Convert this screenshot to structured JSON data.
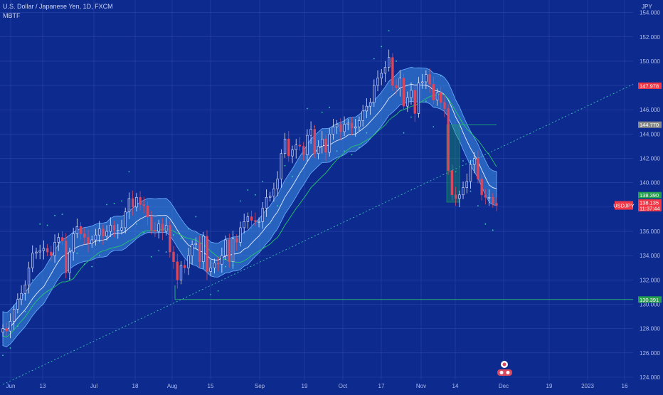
{
  "header": {
    "symbol_line": "U.S. Dollar / Japanese Yen, 1D, FXCM",
    "indicator": "MBTF"
  },
  "colors": {
    "background": "#0d2a8f",
    "grid": "#2a46a8",
    "up": "#1e3ea8",
    "down": "#d9485f",
    "band": "#3f8fe8",
    "mid": "#e6ecff",
    "signal": "#22c76a",
    "dots": "#3fd3b0",
    "support": "#2fc26b",
    "price_badge": "#f23645",
    "gray_badge": "#888888"
  },
  "chart_data": {
    "type": "candlestick",
    "title": "U.S. Dollar / Japanese Yen, 1D, FXCM",
    "ylabel": "JPY",
    "ylim": [
      123.5,
      155
    ],
    "y_ticks": [
      "124.000",
      "126.000",
      "128.000",
      "130.000",
      "132.000",
      "134.000",
      "136.000",
      "138.000",
      "140.000",
      "142.000",
      "144.000",
      "146.000",
      "148.000",
      "150.000",
      "152.000",
      "154.000"
    ],
    "x_ticks": [
      "Jun",
      "13",
      "Jul",
      "18",
      "Aug",
      "15",
      "Sep",
      "19",
      "Oct",
      "17",
      "Nov",
      "14",
      "Dec",
      "19",
      "2023",
      "16"
    ],
    "grid": true,
    "price_labels": [
      {
        "text": "147.978",
        "value": 147.978,
        "color": "#f23645"
      },
      {
        "text": "144.770",
        "value": 144.77,
        "color": "#888888"
      },
      {
        "text": "138.390",
        "value": 138.39,
        "color": "#22a04b"
      },
      {
        "text": "USDJPY",
        "value": 138.135,
        "color": "#f23645"
      },
      {
        "text": "138.135",
        "value": 138.135,
        "color": "#f23645"
      },
      {
        "text": "11:37:44",
        "value": 138.135,
        "color": "#f23645"
      },
      {
        "text": "130.391",
        "value": 130.391,
        "color": "#22a04b"
      }
    ],
    "close_series": [
      128.0,
      127.8,
      128.6,
      129.6,
      130.4,
      130.9,
      131.6,
      133.0,
      134.2,
      134.3,
      134.4,
      134.6,
      134.3,
      134.0,
      135.1,
      135.5,
      135.2,
      132.6,
      134.3,
      135.8,
      136.4,
      135.8,
      135.5,
      135.0,
      135.3,
      135.7,
      136.2,
      135.6,
      136.0,
      136.5,
      136.1,
      136.1,
      136.3,
      137.6,
      138.7,
      138.0,
      138.8,
      138.2,
      138.1,
      137.2,
      136.1,
      136.0,
      136.6,
      136.0,
      136.5,
      134.3,
      133.5,
      132.0,
      133.2,
      133.0,
      134.0,
      134.9,
      135.0,
      133.5,
      135.6,
      132.7,
      133.0,
      133.4,
      133.3,
      134.0,
      135.3,
      133.5,
      135.4,
      135.1,
      136.3,
      136.8,
      137.2,
      136.9,
      136.8,
      136.8,
      137.9,
      138.8,
      138.9,
      139.5,
      140.3,
      142.4,
      143.6,
      142.2,
      142.7,
      143.1,
      143.0,
      142.3,
      143.9,
      144.4,
      142.4,
      143.0,
      143.6,
      142.5,
      144.0,
      144.6,
      144.8,
      144.2,
      144.8,
      144.9,
      144.5,
      144.6,
      145.1,
      145.9,
      146.3,
      146.6,
      148.0,
      148.6,
      149.0,
      149.5,
      150.3,
      148.0,
      147.8,
      148.6,
      146.3,
      147.0,
      147.6,
      145.7,
      148.2,
      148.3,
      148.9,
      148.1,
      146.8,
      147.4,
      146.6,
      146.1,
      141.0,
      139.0,
      138.7,
      139.0,
      139.6,
      140.1,
      141.5,
      142.0,
      140.3,
      139.0,
      138.8,
      138.8,
      138.3,
      138.135
    ],
    "annotations": [
      {
        "type": "horizontal_support",
        "value": 130.391
      },
      {
        "type": "trend_line",
        "from": 123.4,
        "to": 148.1
      },
      {
        "type": "rectangle",
        "from": 138.4,
        "to": 144.77
      }
    ]
  }
}
